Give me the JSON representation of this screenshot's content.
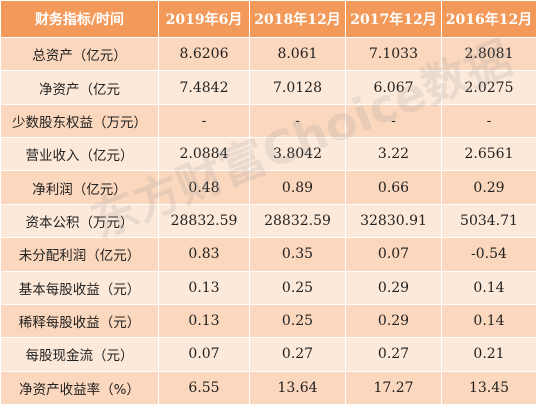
{
  "table": {
    "headers": [
      "财务指标/时间",
      "2019年6月",
      "2018年12月",
      "2017年12月",
      "2016年12月"
    ],
    "rows": [
      {
        "label": "总资产（亿元）",
        "values": [
          "8.6206",
          "8.061",
          "7.1033",
          "2.8081"
        ]
      },
      {
        "label": "净资产（亿元",
        "values": [
          "7.4842",
          "7.0128",
          "6.067",
          "2.0275"
        ]
      },
      {
        "label": "少数股东权益（万元）",
        "values": [
          "-",
          "-",
          "-",
          "-"
        ]
      },
      {
        "label": "营业收入（亿元）",
        "values": [
          "2.0884",
          "3.8042",
          "3.22",
          "2.6561"
        ]
      },
      {
        "label": "净利润（亿元）",
        "values": [
          "0.48",
          "0.89",
          "0.66",
          "0.29"
        ]
      },
      {
        "label": "资本公积（万元）",
        "values": [
          "28832.59",
          "28832.59",
          "32830.91",
          "5034.71"
        ]
      },
      {
        "label": "未分配利润（亿元）",
        "values": [
          "0.83",
          "0.35",
          "0.07",
          "-0.54"
        ]
      },
      {
        "label": "基本每股收益（元）",
        "values": [
          "0.13",
          "0.25",
          "0.29",
          "0.14"
        ]
      },
      {
        "label": "稀释每股收益（元）",
        "values": [
          "0.13",
          "0.25",
          "0.29",
          "0.14"
        ]
      },
      {
        "label": "每股现金流（元）",
        "values": [
          "0.07",
          "0.27",
          "0.27",
          "0.21"
        ]
      },
      {
        "label": "净资产收益率（%）",
        "values": [
          "6.55",
          "13.64",
          "17.27",
          "13.45"
        ]
      }
    ]
  },
  "watermark": "东方财富Choice数据",
  "colors": {
    "header_bg": "#f39a5a",
    "row_dark": "#fbd7bd",
    "row_light": "#fde9da"
  }
}
